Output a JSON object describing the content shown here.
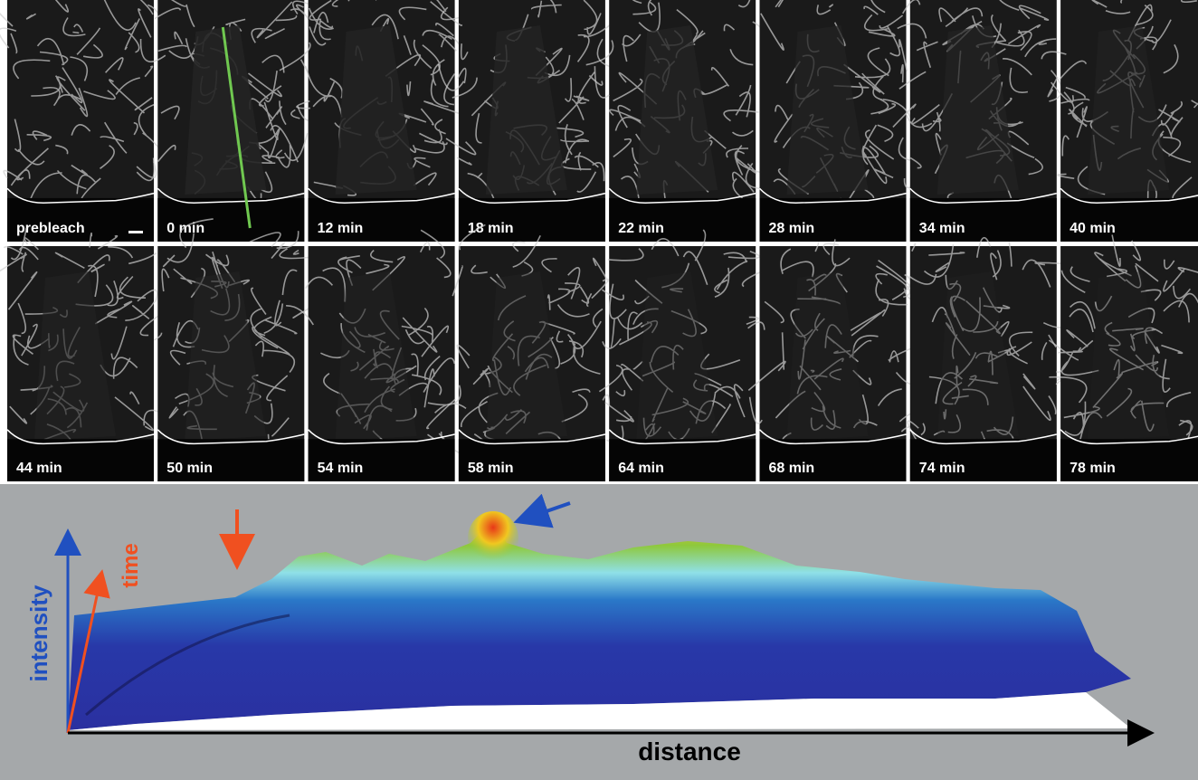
{
  "panels": [
    {
      "label": "prebleach"
    },
    {
      "label": "0 min"
    },
    {
      "label": "12 min"
    },
    {
      "label": "18 min"
    },
    {
      "label": "22 min"
    },
    {
      "label": "28 min"
    },
    {
      "label": "34 min"
    },
    {
      "label": "40 min"
    },
    {
      "label": "44 min"
    },
    {
      "label": "50 min"
    },
    {
      "label": "54 min"
    },
    {
      "label": "58 min"
    },
    {
      "label": "64 min"
    },
    {
      "label": "68 min"
    },
    {
      "label": "74 min"
    },
    {
      "label": "78 min"
    }
  ],
  "plot": {
    "y_axis_label": "intensity",
    "time_axis_label": "time",
    "x_axis_label": "distance"
  }
}
